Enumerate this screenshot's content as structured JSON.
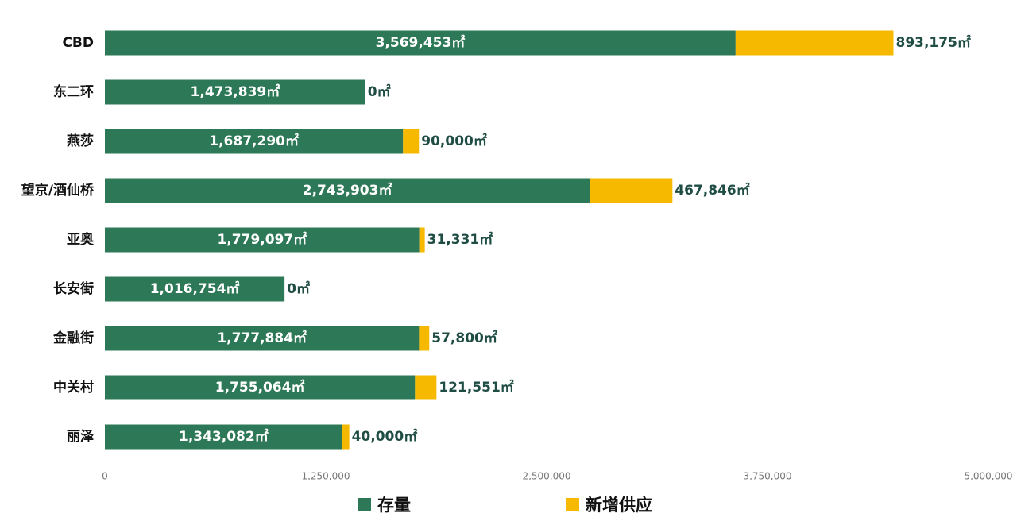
{
  "chart_data": {
    "type": "bar",
    "orientation": "horizontal",
    "stacked": true,
    "categories": [
      "CBD",
      "东二环",
      "燕莎",
      "望京/酒仙桥",
      "亚奥",
      "长安街",
      "金融街",
      "中关村",
      "丽泽"
    ],
    "series": [
      {
        "name": "存量",
        "color": "#2d7856",
        "values": [
          3569453,
          1473839,
          1687290,
          2743903,
          1779097,
          1016754,
          1777884,
          1755064,
          1343082
        ],
        "value_labels": [
          "3,569,453㎡",
          "1,473,839㎡",
          "1,687,290㎡",
          "2,743,903㎡",
          "1,779,097㎡",
          "1,016,754㎡",
          "1,777,884㎡",
          "1,755,064㎡",
          "1,343,082㎡"
        ]
      },
      {
        "name": "新增供应",
        "color": "#f6b900",
        "values": [
          893175,
          0,
          90000,
          467846,
          31331,
          0,
          57800,
          121551,
          40000
        ],
        "value_labels": [
          "893,175㎡",
          "0㎡",
          "90,000㎡",
          "467,846㎡",
          "31,331㎡",
          "0㎡",
          "57,800㎡",
          "121,551㎡",
          "40,000㎡"
        ]
      }
    ],
    "xlim": [
      0,
      5000000
    ],
    "xticks": [
      0,
      {
        "value": 1250000,
        "label": "1,250,000"
      },
      {
        "value": 2500000,
        "label": "2,500,000"
      },
      {
        "value": 3750000,
        "label": "3,750,000"
      },
      {
        "value": 5000000,
        "label": "5,000,000"
      }
    ]
  }
}
